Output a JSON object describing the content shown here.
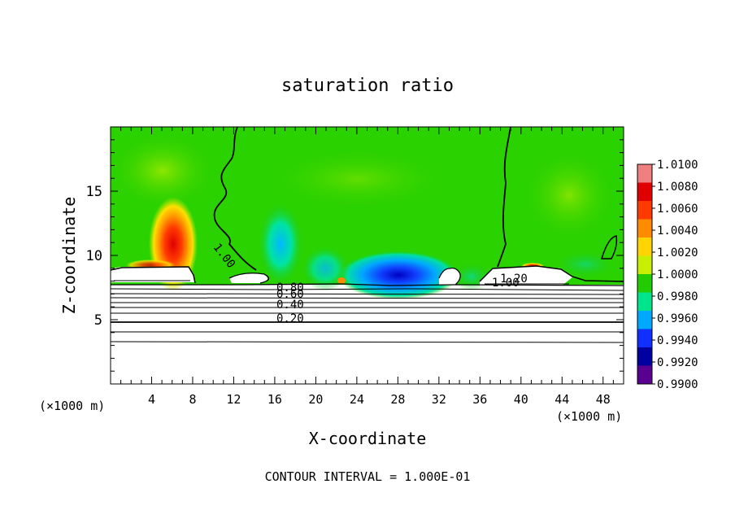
{
  "chart_data": {
    "type": "heatmap",
    "title": "saturation ratio",
    "xlabel": "X-coordinate",
    "ylabel": "Z-coordinate",
    "x_unit_left": "(×1000 m)",
    "x_unit_right": "(×1000 m)",
    "xlim": [
      0,
      50
    ],
    "ylim": [
      0,
      20
    ],
    "x_ticks": [
      "4",
      "8",
      "12",
      "16",
      "20",
      "24",
      "28",
      "32",
      "36",
      "40",
      "44",
      "48"
    ],
    "y_ticks": [
      "5",
      "10",
      "15"
    ],
    "footer": "CONTOUR INTERVAL = 1.000E-01",
    "colorbar": {
      "ticks": [
        "1.0100",
        "1.0080",
        "1.0060",
        "1.0040",
        "1.0020",
        "1.0000",
        "0.9980",
        "0.9960",
        "0.9940",
        "0.9920",
        "0.9900"
      ],
      "colors": [
        "#f08080",
        "#e00000",
        "#ff3a00",
        "#ff8c00",
        "#ffd400",
        "#c8ee00",
        "#22cc00",
        "#00e48c",
        "#00a8ff",
        "#1030ff",
        "#0000a0",
        "#5a0090"
      ]
    },
    "contour_labels": [
      {
        "text": "1.00",
        "x": 10.8,
        "y": 9.8,
        "angle": 52
      },
      {
        "text": "0.80",
        "x": 17.5,
        "y": 7.2,
        "angle": 0
      },
      {
        "text": "0.60",
        "x": 17.5,
        "y": 6.7,
        "angle": 0
      },
      {
        "text": "0.40",
        "x": 17.5,
        "y": 5.9,
        "angle": 0
      },
      {
        "text": "0.20",
        "x": 17.5,
        "y": 4.8,
        "angle": 0
      },
      {
        "text": "1.00",
        "x": 38.5,
        "y": 7.6,
        "angle": 0
      },
      {
        "text": "1.20",
        "x": 39.3,
        "y": 7.9,
        "angle": 0
      }
    ]
  }
}
